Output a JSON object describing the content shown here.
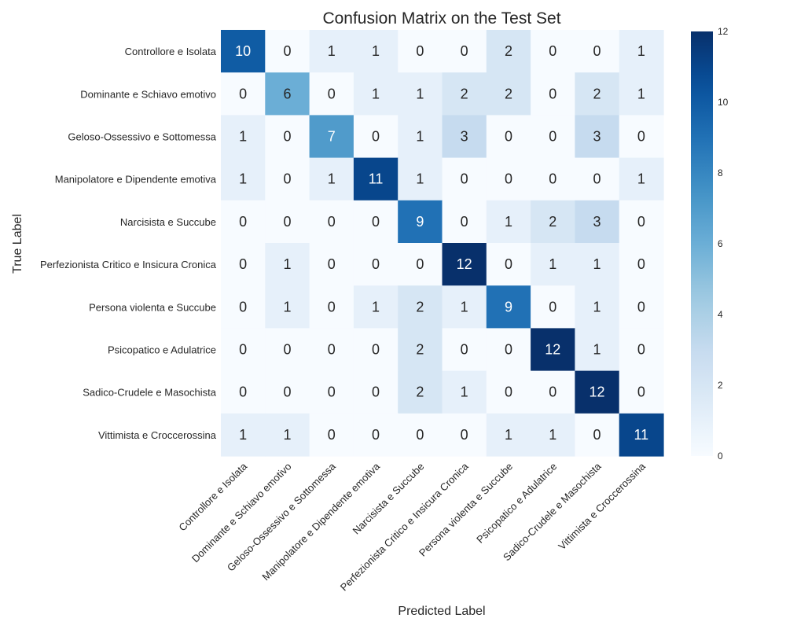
{
  "chart_data": {
    "type": "heatmap",
    "title": "Confusion Matrix on the Test Set",
    "xlabel": "Predicted Label",
    "ylabel": "True Label",
    "labels": [
      "Controllore e Isolata",
      "Dominante e Schiavo emotivo",
      "Geloso-Ossessivo e Sottomessa",
      "Manipolatore e Dipendente emotiva",
      "Narcisista e Succube",
      "Perfezionista Critico e Insicura Cronica",
      "Persona violenta e Succube",
      "Psicopatico e Adulatrice",
      "Sadico-Crudele e Masochista",
      "Vittimista e Croccerossina"
    ],
    "matrix": [
      [
        10,
        0,
        1,
        1,
        0,
        0,
        2,
        0,
        0,
        1
      ],
      [
        0,
        6,
        0,
        1,
        1,
        2,
        2,
        0,
        2,
        1
      ],
      [
        1,
        0,
        7,
        0,
        1,
        3,
        0,
        0,
        3,
        0
      ],
      [
        1,
        0,
        1,
        11,
        1,
        0,
        0,
        0,
        0,
        1
      ],
      [
        0,
        0,
        0,
        0,
        9,
        0,
        1,
        2,
        3,
        0
      ],
      [
        0,
        1,
        0,
        0,
        0,
        12,
        0,
        1,
        1,
        0
      ],
      [
        0,
        1,
        0,
        1,
        2,
        1,
        9,
        0,
        1,
        0
      ],
      [
        0,
        0,
        0,
        0,
        2,
        0,
        0,
        12,
        1,
        0
      ],
      [
        0,
        0,
        0,
        0,
        2,
        1,
        0,
        0,
        12,
        0
      ],
      [
        1,
        1,
        0,
        0,
        0,
        0,
        1,
        1,
        0,
        11
      ]
    ],
    "vmin": 0,
    "vmax": 12,
    "colorbar_ticks": [
      0,
      2,
      4,
      6,
      8,
      10,
      12
    ],
    "colormap": "Blues",
    "grid": false,
    "colorbar_placement": "right"
  }
}
